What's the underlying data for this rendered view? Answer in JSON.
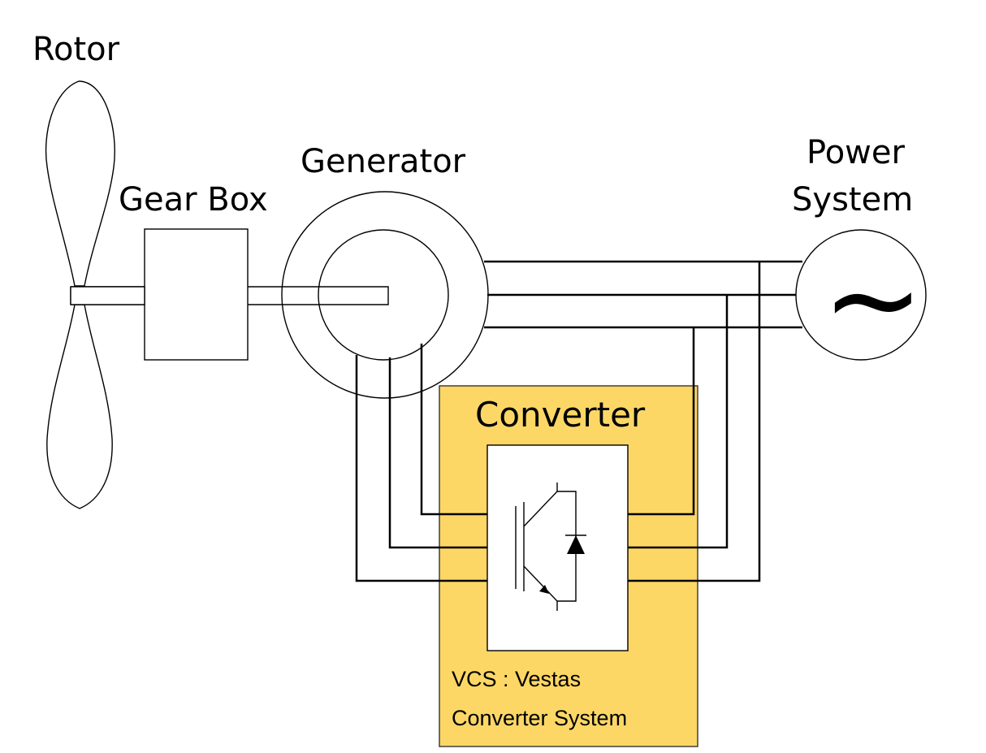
{
  "labels": {
    "rotor": "Rotor",
    "gearbox": "Gear Box",
    "generator": "Generator",
    "power_system_line1": "Power",
    "power_system_line2": "System",
    "converter": "Converter",
    "ac_symbol": "~",
    "vcs_line1": "VCS : Vestas",
    "vcs_line2": "Converter System"
  },
  "colors": {
    "converter_fill": "#FCD766",
    "converter_border": "#333333",
    "line": "#000000",
    "background": "#FFFFFF"
  },
  "icons": {
    "igbt": "igbt-transistor-icon",
    "diode": "freewheeling-diode-icon",
    "ac_source": "ac-source-icon"
  }
}
